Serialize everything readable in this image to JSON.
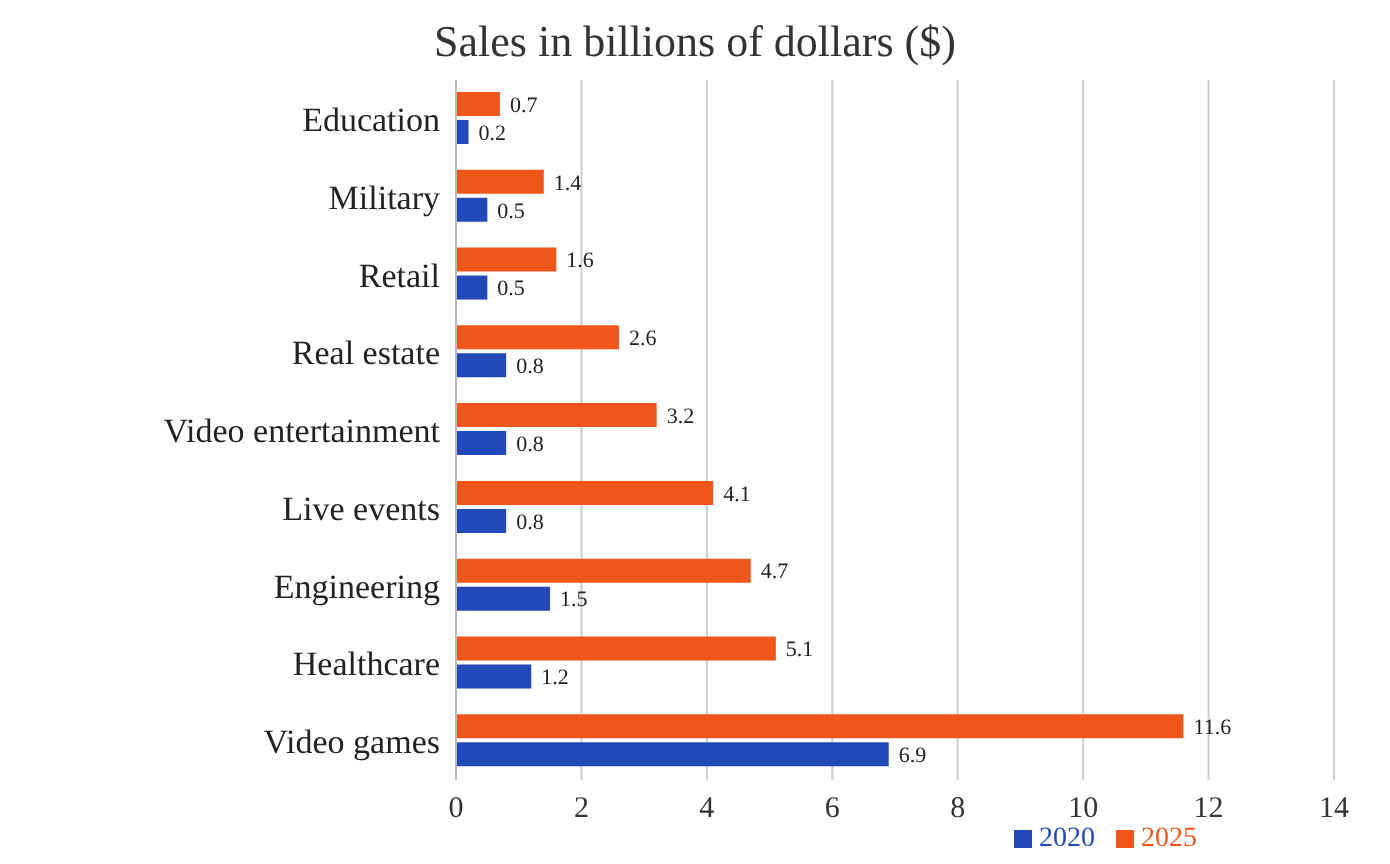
{
  "chart_data": {
    "type": "bar",
    "orientation": "horizontal",
    "title": "Sales in billions of dollars ($)",
    "categories": [
      "Education",
      "Military",
      "Retail",
      "Real estate",
      "Video entertainment",
      "Live events",
      "Engineering",
      "Healthcare",
      "Video games"
    ],
    "series": [
      {
        "name": "2025",
        "color": "#f0561a",
        "values": [
          0.7,
          1.4,
          1.6,
          2.6,
          3.2,
          4.1,
          4.7,
          5.1,
          11.6
        ]
      },
      {
        "name": "2020",
        "color": "#2149b8",
        "values": [
          0.2,
          0.5,
          0.5,
          0.8,
          0.8,
          0.8,
          1.5,
          1.2,
          6.9
        ]
      }
    ],
    "xlim": [
      0,
      14
    ],
    "xticks": [
      0,
      2,
      4,
      6,
      8,
      10,
      12,
      14
    ],
    "grid": "x",
    "legend": "bottom",
    "data_labels": true
  }
}
